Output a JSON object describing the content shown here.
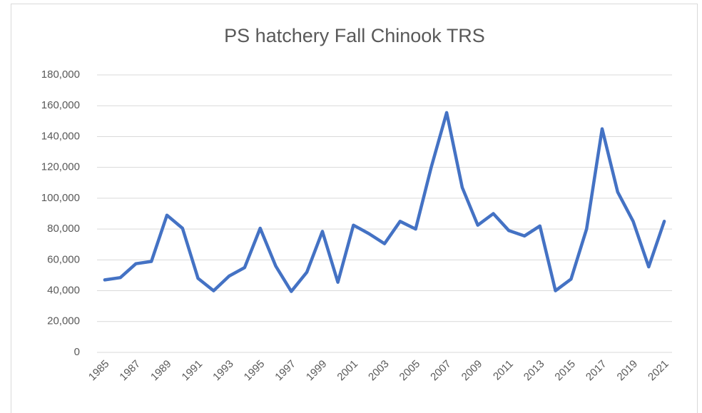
{
  "chart_data": {
    "type": "line",
    "title": "PS hatchery Fall Chinook TRS",
    "categories": [
      "1985",
      null,
      "1987",
      null,
      "1989",
      null,
      "1991",
      null,
      "1993",
      null,
      "1995",
      null,
      "1997",
      null,
      "1999",
      null,
      "2001",
      null,
      "2003",
      null,
      "2005",
      null,
      "2007",
      null,
      "2009",
      null,
      "2011",
      null,
      "2013",
      null,
      "2015",
      null,
      "2017",
      null,
      "2019",
      null,
      "2021"
    ],
    "series": [
      {
        "color": "#4472c4",
        "values": [
          47000,
          48500,
          57500,
          59000,
          89000,
          80500,
          48000,
          40000,
          49500,
          55000,
          80500,
          56000,
          39500,
          52000,
          78500,
          45500,
          82500,
          77000,
          70500,
          85000,
          80000,
          120000,
          155500,
          107000,
          82500,
          90000,
          79000,
          75500,
          82000,
          40000,
          47500,
          80000,
          145000,
          104000,
          85000,
          55500,
          85000
        ]
      }
    ],
    "ylim": [
      0,
      180000
    ],
    "yticks": [
      0,
      {
        "value": 20000,
        "label": "20,000"
      },
      {
        "value": 40000,
        "label": "40,000"
      },
      {
        "value": 60000,
        "label": "60,000"
      },
      {
        "value": 80000,
        "label": "80,000"
      },
      {
        "value": 100000,
        "label": "100,000"
      },
      {
        "value": 120000,
        "label": "120,000"
      },
      {
        "value": 140000,
        "label": "140,000"
      },
      {
        "value": 160000,
        "label": "160,000"
      },
      {
        "value": 180000,
        "label": "180,000"
      }
    ],
    "grid": true
  }
}
